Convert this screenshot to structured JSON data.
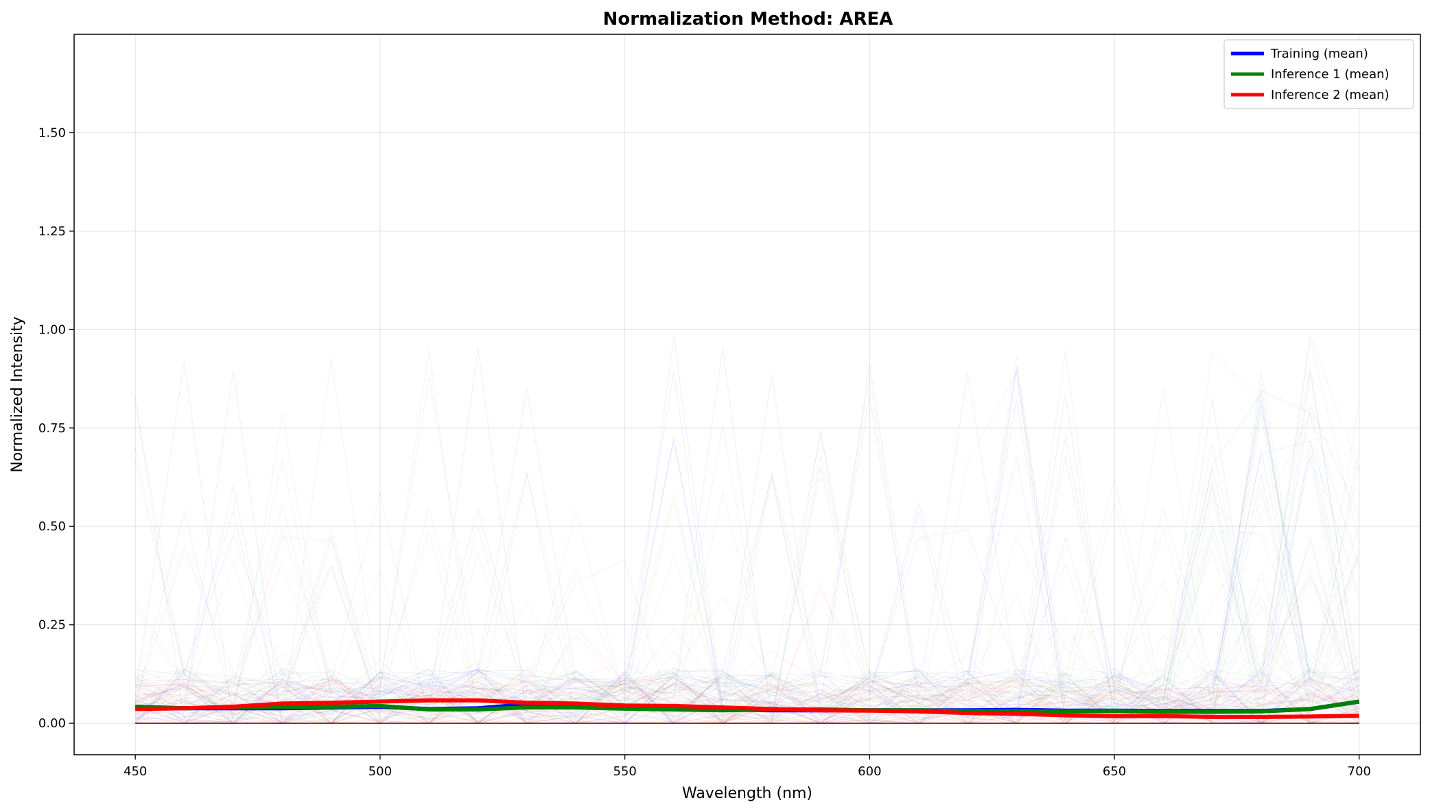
{
  "chart_data": {
    "type": "line",
    "title": "Normalization Method: AREA",
    "xlabel": "Wavelength (nm)",
    "ylabel": "Normalized Intensity",
    "xlim": [
      437.5,
      712.5
    ],
    "ylim": [
      -0.08,
      1.75
    ],
    "xticks": [
      450,
      500,
      550,
      600,
      650,
      700
    ],
    "yticks": [
      0.0,
      0.25,
      0.5,
      0.75,
      1.0,
      1.25,
      1.5
    ],
    "ytick_labels": [
      "0.00",
      "0.25",
      "0.50",
      "0.75",
      "1.00",
      "1.25",
      "1.50"
    ],
    "grid": true,
    "legend_position": "top-right",
    "x": [
      450,
      460,
      470,
      480,
      490,
      500,
      510,
      520,
      530,
      540,
      550,
      560,
      570,
      580,
      590,
      600,
      610,
      620,
      630,
      640,
      650,
      660,
      670,
      680,
      690,
      700
    ],
    "series": [
      {
        "name": "Training (mean)",
        "color": "#0000ff",
        "values": [
          0.042,
          0.038,
          0.038,
          0.038,
          0.04,
          0.042,
          0.036,
          0.038,
          0.048,
          0.045,
          0.042,
          0.04,
          0.035,
          0.033,
          0.033,
          0.033,
          0.033,
          0.033,
          0.034,
          0.032,
          0.032,
          0.031,
          0.031,
          0.031,
          0.036,
          0.055
        ]
      },
      {
        "name": "Inference 1 (mean)",
        "color": "#008000",
        "values": [
          0.042,
          0.038,
          0.04,
          0.042,
          0.042,
          0.044,
          0.035,
          0.035,
          0.04,
          0.04,
          0.037,
          0.035,
          0.033,
          0.035,
          0.035,
          0.033,
          0.033,
          0.031,
          0.031,
          0.03,
          0.031,
          0.029,
          0.029,
          0.03,
          0.036,
          0.055
        ]
      },
      {
        "name": "Inference 2 (mean)",
        "color": "#ff0000",
        "values": [
          0.036,
          0.038,
          0.042,
          0.05,
          0.052,
          0.055,
          0.058,
          0.058,
          0.052,
          0.05,
          0.045,
          0.044,
          0.04,
          0.036,
          0.033,
          0.032,
          0.03,
          0.026,
          0.024,
          0.02,
          0.018,
          0.018,
          0.016,
          0.016,
          0.017,
          0.019
        ]
      }
    ]
  }
}
